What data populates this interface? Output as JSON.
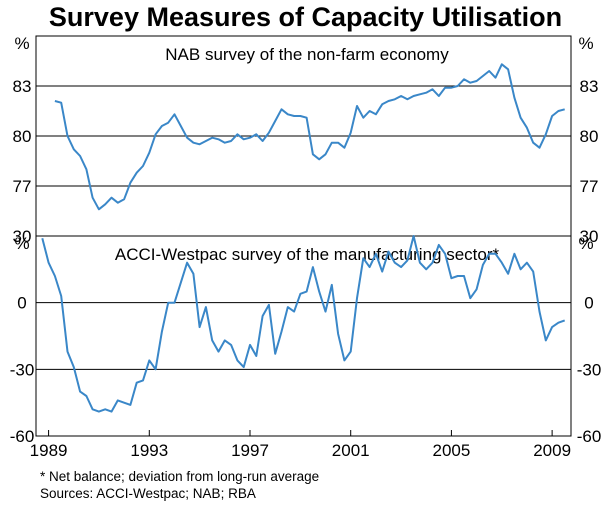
{
  "page": {
    "title": "Survey Measures of Capacity Utilisation",
    "footnote": "*    Net balance; deviation from long-run average",
    "sources": "Sources: ACCI-Westpac; NAB; RBA"
  },
  "colors": {
    "line": "#3a87c8",
    "grid": "#000000"
  },
  "chart_data": [
    {
      "type": "line",
      "title": "NAB survey of the non-farm economy",
      "ylabel": "%",
      "ylim": [
        74,
        86
      ],
      "yticks": [
        "83",
        "80",
        "77"
      ],
      "ytick_values": [
        83,
        80,
        77
      ],
      "xlim": [
        1988.5,
        2009.75
      ],
      "series": [
        {
          "x": [
            1989.25,
            1989.5,
            1989.75,
            1990.0,
            1990.25,
            1990.5,
            1990.75,
            1991.0,
            1991.25,
            1991.5,
            1991.75,
            1992.0,
            1992.25,
            1992.5,
            1992.75,
            1993.0,
            1993.25,
            1993.5,
            1993.75,
            1994.0,
            1994.25,
            1994.5,
            1994.75,
            1995.0,
            1995.25,
            1995.5,
            1995.75,
            1996.0,
            1996.25,
            1996.5,
            1996.75,
            1997.0,
            1997.25,
            1997.5,
            1997.75,
            1998.0,
            1998.25,
            1998.5,
            1998.75,
            1999.0,
            1999.25,
            1999.5,
            1999.75,
            2000.0,
            2000.25,
            2000.5,
            2000.75,
            2001.0,
            2001.25,
            2001.5,
            2001.75,
            2002.0,
            2002.25,
            2002.5,
            2002.75,
            2003.0,
            2003.25,
            2003.5,
            2003.75,
            2004.0,
            2004.25,
            2004.5,
            2004.75,
            2005.0,
            2005.25,
            2005.5,
            2005.75,
            2006.0,
            2006.25,
            2006.5,
            2006.75,
            2007.0,
            2007.25,
            2007.5,
            2007.75,
            2008.0,
            2008.25,
            2008.5,
            2008.75,
            2009.0,
            2009.25,
            2009.5
          ],
          "values": [
            82.1,
            82.0,
            80.0,
            79.2,
            78.8,
            78.0,
            76.3,
            75.6,
            75.9,
            76.3,
            76.0,
            76.2,
            77.2,
            77.8,
            78.2,
            79.0,
            80.1,
            80.6,
            80.8,
            81.3,
            80.6,
            79.9,
            79.6,
            79.5,
            79.7,
            79.9,
            79.8,
            79.6,
            79.7,
            80.1,
            79.8,
            79.9,
            80.1,
            79.7,
            80.2,
            80.9,
            81.6,
            81.3,
            81.2,
            81.2,
            81.1,
            78.9,
            78.6,
            78.9,
            79.6,
            79.6,
            79.3,
            80.2,
            81.8,
            81.1,
            81.5,
            81.3,
            81.9,
            82.1,
            82.2,
            82.4,
            82.2,
            82.4,
            82.5,
            82.6,
            82.8,
            82.4,
            82.9,
            82.9,
            83.0,
            83.4,
            83.2,
            83.3,
            83.6,
            83.9,
            83.5,
            84.3,
            84.0,
            82.3,
            81.1,
            80.5,
            79.6,
            79.3,
            80.1,
            81.2,
            81.5,
            81.6
          ]
        }
      ]
    },
    {
      "type": "line",
      "title": "ACCI-Westpac survey of the manufacturing sector*",
      "ylabel": "%",
      "ylim": [
        -60,
        30
      ],
      "yticks": [
        "30",
        "0",
        "-30",
        "-60"
      ],
      "ytick_values": [
        30,
        0,
        -30,
        -60
      ],
      "xlim": [
        1988.5,
        2009.75
      ],
      "xticks": [
        "1989",
        "1993",
        "1997",
        "2001",
        "2005",
        "2009"
      ],
      "xtick_values": [
        1989,
        1993,
        1997,
        2001,
        2005,
        2009
      ],
      "series": [
        {
          "x": [
            1988.75,
            1989.0,
            1989.25,
            1989.5,
            1989.75,
            1990.0,
            1990.25,
            1990.5,
            1990.75,
            1991.0,
            1991.25,
            1991.5,
            1991.75,
            1992.0,
            1992.25,
            1992.5,
            1992.75,
            1993.0,
            1993.25,
            1993.5,
            1993.75,
            1994.0,
            1994.25,
            1994.5,
            1994.75,
            1995.0,
            1995.25,
            1995.5,
            1995.75,
            1996.0,
            1996.25,
            1996.5,
            1996.75,
            1997.0,
            1997.25,
            1997.5,
            1997.75,
            1998.0,
            1998.25,
            1998.5,
            1998.75,
            1999.0,
            1999.25,
            1999.5,
            1999.75,
            2000.0,
            2000.25,
            2000.5,
            2000.75,
            2001.0,
            2001.25,
            2001.5,
            2001.75,
            2002.0,
            2002.25,
            2002.5,
            2002.75,
            2003.0,
            2003.25,
            2003.5,
            2003.75,
            2004.0,
            2004.25,
            2004.5,
            2004.75,
            2005.0,
            2005.25,
            2005.5,
            2005.75,
            2006.0,
            2006.25,
            2006.5,
            2006.75,
            2007.0,
            2007.25,
            2007.5,
            2007.75,
            2008.0,
            2008.25,
            2008.5,
            2008.75,
            2009.0,
            2009.25,
            2009.5
          ],
          "values": [
            29,
            18,
            12,
            3,
            -22,
            -29,
            -40,
            -42,
            -48,
            -49,
            -48,
            -49,
            -44,
            -45,
            -46,
            -36,
            -35,
            -26,
            -30,
            -13,
            0,
            0,
            9,
            18,
            13,
            -11,
            -2,
            -17,
            -22,
            -17,
            -19,
            -26,
            -29,
            -19,
            -24,
            -6,
            -1,
            -23,
            -13,
            -2,
            -4,
            4,
            5,
            16,
            5,
            -4,
            8,
            -14,
            -26,
            -22,
            2,
            20,
            16,
            22,
            14,
            23,
            18,
            16,
            19,
            30,
            18,
            15,
            18,
            26,
            22,
            11,
            12,
            12,
            2,
            6,
            17,
            22,
            22,
            18,
            13,
            22,
            15,
            18,
            14,
            -4,
            -17,
            -11,
            -9,
            -8
          ]
        }
      ]
    }
  ]
}
